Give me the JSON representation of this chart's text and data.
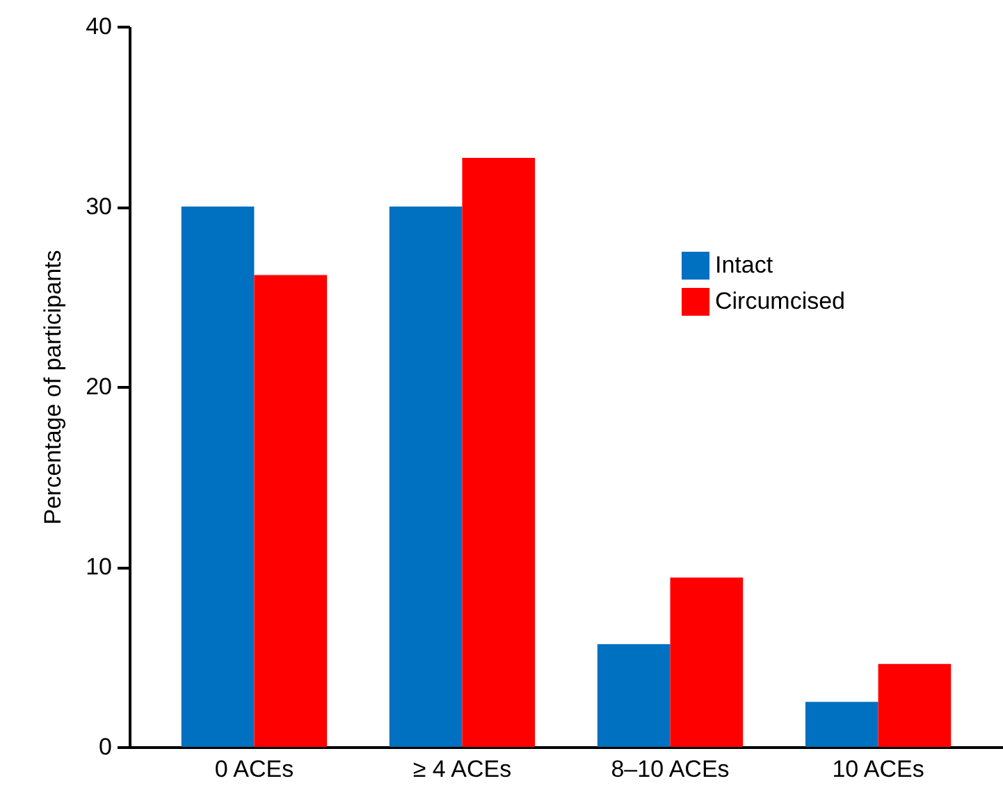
{
  "chart_data": {
    "type": "bar",
    "ylabel": "Percentage of participants",
    "categories": [
      "0 ACEs",
      "≥ 4 ACEs",
      "8–10 ACEs",
      "10 ACEs"
    ],
    "series": [
      {
        "name": "Intact",
        "color": "#0070c0",
        "values": [
          30,
          30,
          5.7,
          2.5
        ]
      },
      {
        "name": "Circumcised",
        "color": "#ff0000",
        "values": [
          26.2,
          32.7,
          9.4,
          4.6
        ]
      }
    ],
    "ylim": [
      0,
      40
    ],
    "yticks": [
      0,
      10,
      20,
      30,
      40
    ],
    "grid": false,
    "legend": "right"
  }
}
